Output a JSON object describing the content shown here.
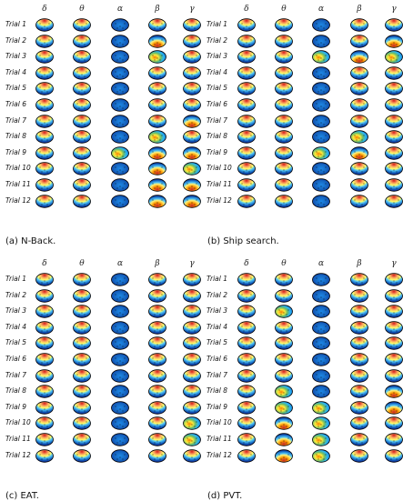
{
  "bands": [
    "δ",
    "θ",
    "α",
    "β",
    "γ"
  ],
  "trials": [
    "Trial 1",
    "Trial 2",
    "Trial 3",
    "Trial 4",
    "Trial 5",
    "Trial 6",
    "Trial 7",
    "Trial 8",
    "Trial 9",
    "Trial 10",
    "Trial 11",
    "Trial 12"
  ],
  "panels": [
    {
      "caption": "(a) N-Back.",
      "maps": [
        [
          "red-top",
          "red-top",
          "blue",
          "red-top",
          "red-top"
        ],
        [
          "red-top",
          "red-top",
          "blue",
          "red-bottom",
          "red-top"
        ],
        [
          "red-top",
          "red-top",
          "blue",
          "mixed",
          "red-top"
        ],
        [
          "red-top",
          "red-top",
          "blue",
          "red-top",
          "red-top"
        ],
        [
          "red-top",
          "red-top",
          "blue",
          "red-top",
          "red-top"
        ],
        [
          "red-top",
          "red-top",
          "blue",
          "red-top",
          "red-top"
        ],
        [
          "red-top",
          "red-top",
          "blue",
          "red-top",
          "red-bottom"
        ],
        [
          "red-top",
          "red-top",
          "blue",
          "mixed",
          "red-top"
        ],
        [
          "red-top",
          "red-top",
          "mixed",
          "red-bottom",
          "red-bottom"
        ],
        [
          "red-top",
          "red-top",
          "blue",
          "red-bottom",
          "mixed"
        ],
        [
          "red-top",
          "red-top",
          "blue",
          "red-bottom",
          "red-bottom"
        ],
        [
          "red-top",
          "red-top",
          "blue",
          "red-bottom",
          "red-bottom"
        ]
      ]
    },
    {
      "caption": "(b) Ship search.",
      "maps": [
        [
          "red-top",
          "red-top",
          "blue",
          "red-top",
          "red-top"
        ],
        [
          "red-top",
          "red-top",
          "blue",
          "red-top",
          "red-bottom"
        ],
        [
          "red-top",
          "red-top",
          "mixed",
          "red-bottom",
          "mixed"
        ],
        [
          "red-top",
          "red-top",
          "blue",
          "red-top",
          "red-top"
        ],
        [
          "red-top",
          "red-top",
          "blue",
          "red-top",
          "red-top"
        ],
        [
          "red-top",
          "red-top",
          "blue",
          "red-top",
          "red-top"
        ],
        [
          "red-top",
          "red-top",
          "blue",
          "red-top",
          "red-top"
        ],
        [
          "red-top",
          "red-top",
          "blue",
          "mixed",
          "red-top"
        ],
        [
          "red-top",
          "red-top",
          "mixed",
          "red-bottom",
          "red-top"
        ],
        [
          "red-top",
          "red-top",
          "blue",
          "red-top",
          "red-top"
        ],
        [
          "red-top",
          "red-top",
          "blue",
          "red-top",
          "red-top"
        ],
        [
          "red-top",
          "red-top",
          "blue",
          "red-top",
          "red-top"
        ]
      ]
    },
    {
      "caption": "(c) EAT.",
      "maps": [
        [
          "red-top",
          "red-top",
          "blue",
          "red-top",
          "red-top"
        ],
        [
          "red-top",
          "red-top",
          "blue",
          "red-top",
          "red-top"
        ],
        [
          "red-top",
          "red-top",
          "blue",
          "red-top",
          "red-top"
        ],
        [
          "red-top",
          "red-top",
          "blue",
          "red-top",
          "red-top"
        ],
        [
          "red-top",
          "red-top",
          "blue",
          "red-top",
          "red-top"
        ],
        [
          "red-top",
          "red-top",
          "blue",
          "red-top",
          "red-top"
        ],
        [
          "red-top",
          "red-top",
          "blue",
          "red-top",
          "red-top"
        ],
        [
          "red-top",
          "red-top",
          "blue",
          "red-top",
          "red-top"
        ],
        [
          "red-top",
          "red-top",
          "blue",
          "red-top",
          "red-top"
        ],
        [
          "red-top",
          "red-top",
          "blue",
          "red-top",
          "mixed"
        ],
        [
          "red-top",
          "red-top",
          "blue",
          "red-top",
          "mixed"
        ],
        [
          "red-top",
          "red-top",
          "blue",
          "red-top",
          "red-top"
        ]
      ]
    },
    {
      "caption": "(d) PVT.",
      "maps": [
        [
          "red-top",
          "red-top",
          "blue",
          "red-top",
          "red-top"
        ],
        [
          "red-top",
          "red-top",
          "blue",
          "red-top",
          "red-top"
        ],
        [
          "red-top",
          "mixed",
          "blue",
          "red-top",
          "red-top"
        ],
        [
          "red-top",
          "red-top",
          "blue",
          "red-top",
          "red-top"
        ],
        [
          "red-top",
          "red-top",
          "blue",
          "red-top",
          "red-top"
        ],
        [
          "red-top",
          "red-top",
          "blue",
          "red-top",
          "red-top"
        ],
        [
          "red-top",
          "red-top",
          "blue",
          "red-top",
          "red-top"
        ],
        [
          "red-top",
          "mixed",
          "blue",
          "red-top",
          "red-bottom"
        ],
        [
          "red-top",
          "mixed",
          "mixed",
          "red-top",
          "red-bottom"
        ],
        [
          "red-top",
          "red-bottom",
          "mixed",
          "red-top",
          "red-top"
        ],
        [
          "red-top",
          "red-bottom",
          "mixed",
          "red-top",
          "red-top"
        ],
        [
          "red-top",
          "red-bottom",
          "mixed",
          "red-top",
          "red-top"
        ]
      ]
    }
  ]
}
